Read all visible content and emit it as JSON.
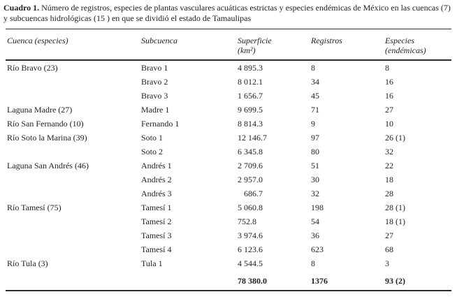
{
  "caption": {
    "label": "Cuadro 1.",
    "text": " Número de registros, especies de plantas vasculares acuáticas estrictas y especies endémicas de México en las cuencas (7) y subcuencas hidrológicas (15 ) en que se dividió el estado de Tamaulipas"
  },
  "table": {
    "columns": [
      {
        "label": "Cuenca (especies)",
        "sub": ""
      },
      {
        "label": "Subcuenca",
        "sub": ""
      },
      {
        "label": "Superficie",
        "sub": "(km²)"
      },
      {
        "label": "Registros",
        "sub": ""
      },
      {
        "label": "Especies",
        "sub": "(endémicas)"
      }
    ],
    "rows": [
      {
        "cuenca": "Río Bravo (23)",
        "subcuenca": "Bravo 1",
        "superficie": "4 895.3",
        "registros": "8",
        "especies": "8"
      },
      {
        "cuenca": "",
        "subcuenca": "Bravo 2",
        "superficie": "8 012.1",
        "registros": "34",
        "especies": "16"
      },
      {
        "cuenca": "",
        "subcuenca": "Bravo 3",
        "superficie": "1 656.7",
        "registros": "45",
        "especies": "16"
      },
      {
        "cuenca": "Laguna Madre (27)",
        "subcuenca": "Madre 1",
        "superficie": "9 699.5",
        "registros": "71",
        "especies": "27"
      },
      {
        "cuenca": "Río San Fernando (10)",
        "subcuenca": "Fernando 1",
        "superficie": "8 814.3",
        "registros": "9",
        "especies": "10"
      },
      {
        "cuenca": "Río Soto la Marina (39)",
        "subcuenca": "Soto 1",
        "superficie": "12 146.7",
        "registros": "97",
        "especies": "26 (1)"
      },
      {
        "cuenca": "",
        "subcuenca": "Soto 2",
        "superficie": "6 345.8",
        "registros": "80",
        "especies": "32"
      },
      {
        "cuenca": "Laguna San Andrés (46)",
        "subcuenca": "Andrés 1",
        "superficie": "2 709.6",
        "registros": "51",
        "especies": "22"
      },
      {
        "cuenca": "",
        "subcuenca": "Andrés 2",
        "superficie": "2 957.0",
        "registros": "30",
        "especies": "18"
      },
      {
        "cuenca": "",
        "subcuenca": "Andrés 3",
        "superficie": "   686.7",
        "registros": "32",
        "especies": "28"
      },
      {
        "cuenca": "Río Tamesí (75)",
        "subcuenca": "Tamesí 1",
        "superficie": "5 060.8",
        "registros": "198",
        "especies": "28 (1)"
      },
      {
        "cuenca": "",
        "subcuenca": "Tamesí 2",
        "superficie": "752.8",
        "registros": "54",
        "especies": "18 (1)"
      },
      {
        "cuenca": "",
        "subcuenca": "Tamesí 3",
        "superficie": "3 974.6",
        "registros": "36",
        "especies": "27"
      },
      {
        "cuenca": "",
        "subcuenca": "Tamesí 4",
        "superficie": "6 123.6",
        "registros": "623",
        "especies": "68"
      },
      {
        "cuenca": "Río Tula (3)",
        "subcuenca": "Tula 1",
        "superficie": "4 544.5",
        "registros": "8",
        "especies": "3"
      }
    ],
    "totals": {
      "cuenca": "",
      "subcuenca": "",
      "superficie": "78 380.0",
      "registros": "1376",
      "especies": "93 (2)"
    }
  }
}
